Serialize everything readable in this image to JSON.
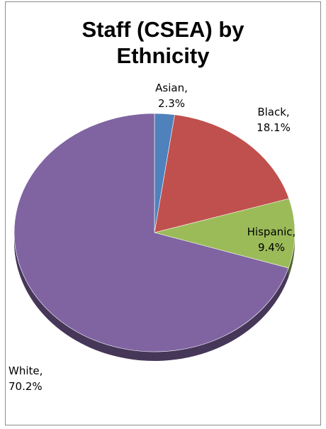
{
  "chart_data": {
    "type": "pie",
    "title": [
      "Staff (CSEA) by",
      "Ethnicity"
    ],
    "style": "3d",
    "slices": [
      {
        "category": "Asian",
        "value": 2.3,
        "value_label": "2.3%",
        "color": "#4f81bd"
      },
      {
        "category": "Black",
        "value": 18.1,
        "value_label": "18.1%",
        "color": "#c0504d"
      },
      {
        "category": "Hispanic",
        "value": 9.4,
        "value_label": "9.4%",
        "color": "#9bbb59"
      },
      {
        "category": "White",
        "value": 70.2,
        "value_label": "70.2%",
        "color": "#8064a2"
      }
    ]
  }
}
